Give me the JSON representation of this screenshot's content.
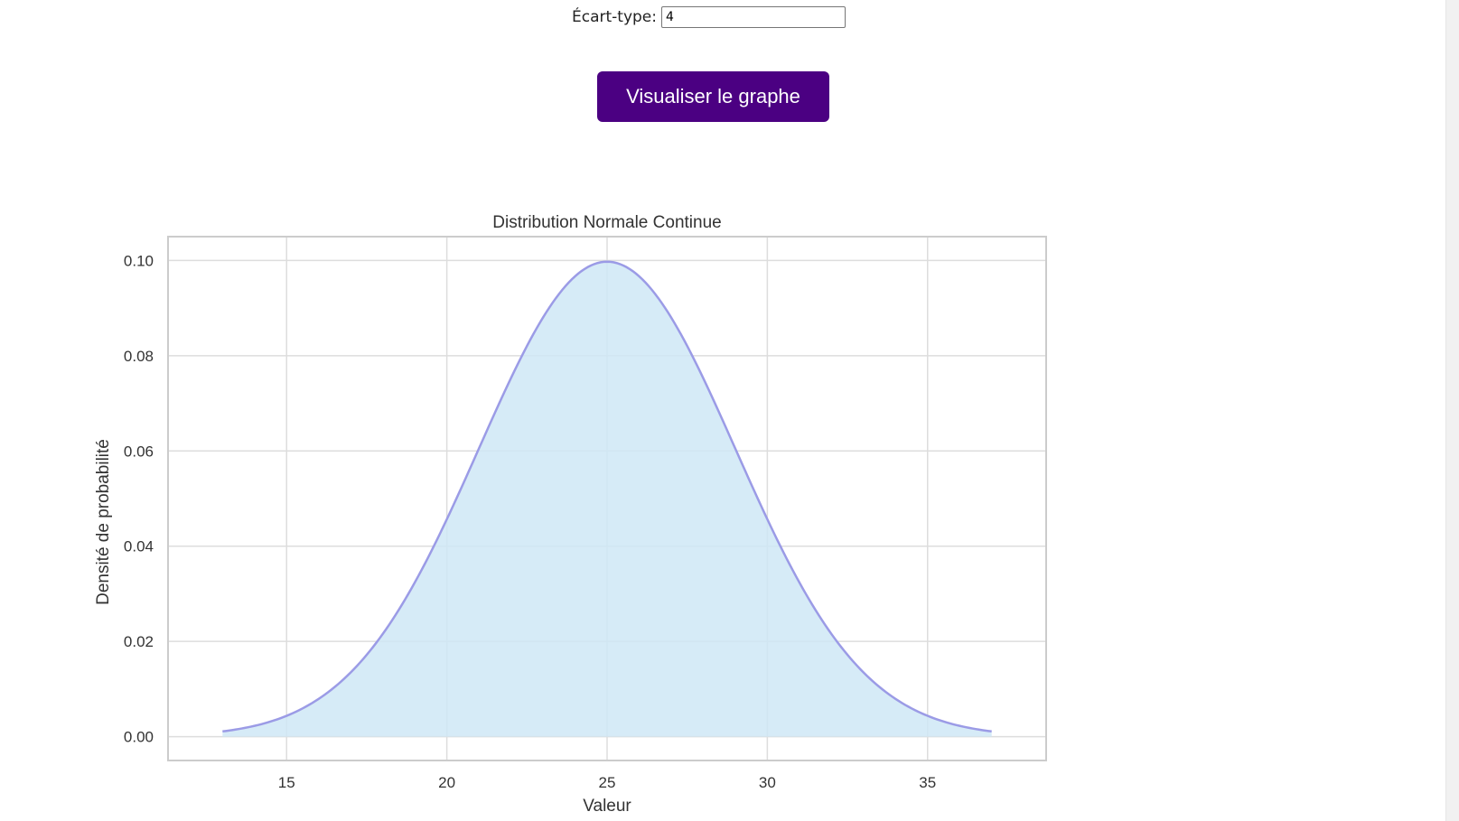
{
  "form": {
    "stddev_label": "Écart-type:",
    "stddev_value": "4"
  },
  "actions": {
    "visualize_label": "Visualiser le graphe"
  },
  "chart_data": {
    "type": "area",
    "title": "Distribution Normale Continue",
    "xlabel": "Valeur",
    "ylabel": "Densité de probabilité",
    "distribution": "normal",
    "mean": 25,
    "stddev": 4,
    "x_range": [
      13,
      37
    ],
    "xlim": [
      11.3,
      38.7
    ],
    "ylim": [
      -0.005,
      0.105
    ],
    "x_ticks": [
      15,
      20,
      25,
      30,
      35
    ],
    "y_ticks": [
      0.0,
      0.02,
      0.04,
      0.06,
      0.08,
      0.1
    ],
    "x_tick_labels": [
      "15",
      "20",
      "25",
      "30",
      "35"
    ],
    "y_tick_labels": [
      "0.00",
      "0.02",
      "0.04",
      "0.06",
      "0.08",
      "0.10"
    ],
    "grid": true,
    "line_color": "#9b9be6",
    "fill_color": "#cfe8f6",
    "grid_color": "#dddddd",
    "frame_color": "#cccccc"
  },
  "colors": {
    "button_bg": "#4b0082",
    "button_text": "#ffffff"
  }
}
